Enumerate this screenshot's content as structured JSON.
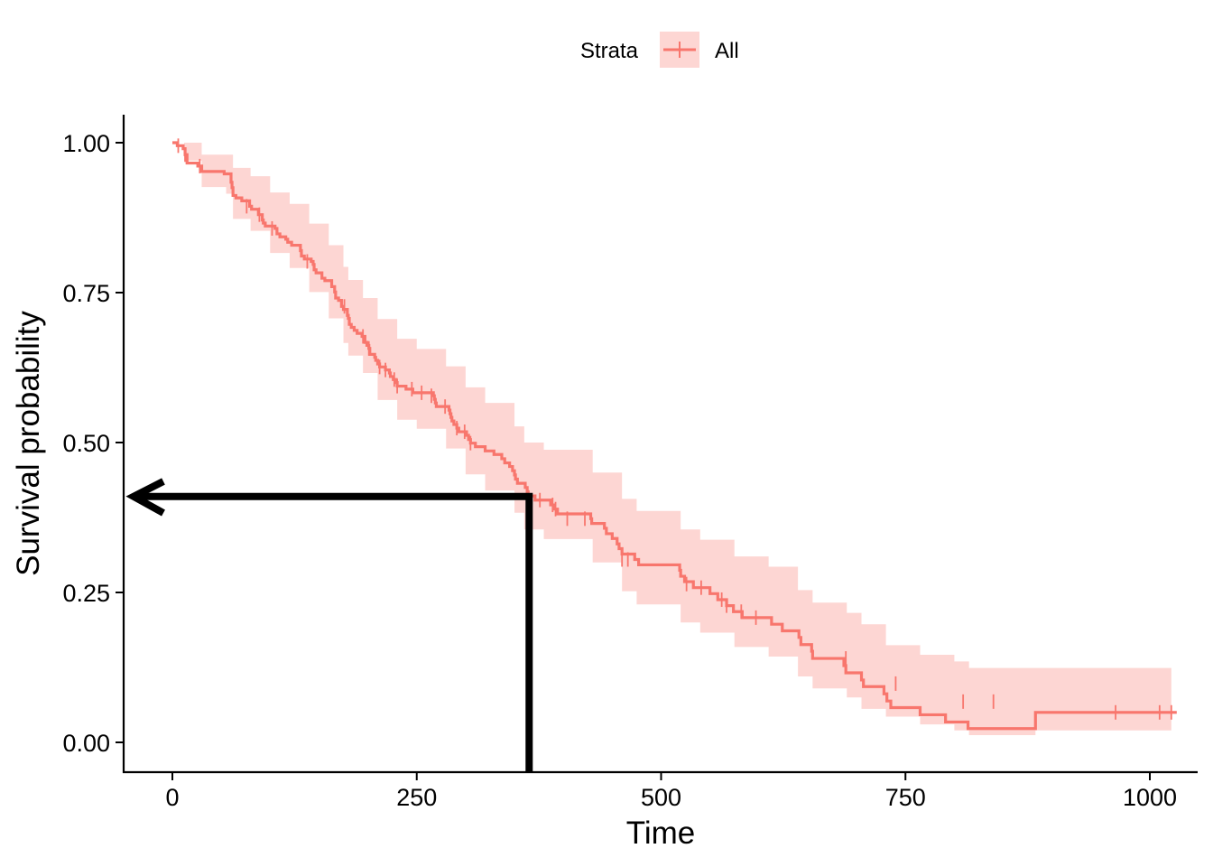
{
  "chart_data": {
    "type": "line",
    "title": "",
    "xlabel": "Time",
    "ylabel": "Survival probability",
    "xlim": [
      -100,
      1050
    ],
    "ylim": [
      -0.05,
      1.05
    ],
    "x_ticks": [
      0,
      250,
      500,
      750,
      1000
    ],
    "x_tick_labels": [
      "0",
      "250",
      "500",
      "750",
      "1000"
    ],
    "y_ticks": [
      0,
      0.25,
      0.5,
      0.75,
      1.0
    ],
    "y_tick_labels": [
      "0.00",
      "0.25",
      "0.50",
      "0.75",
      "1.00"
    ],
    "grid": false,
    "legend": {
      "title": "Strata",
      "position": "top",
      "entries": [
        "All"
      ]
    },
    "colors": {
      "line": "#F8766D",
      "band": "#F8766D",
      "annotation": "#000000"
    },
    "series": [
      {
        "name": "All",
        "step": [
          [
            0,
            1.0
          ],
          [
            5,
            0.995
          ],
          [
            11,
            0.99
          ],
          [
            13,
            0.98
          ],
          [
            15,
            0.966
          ],
          [
            26,
            0.961
          ],
          [
            30,
            0.952
          ],
          [
            53,
            0.948
          ],
          [
            60,
            0.934
          ],
          [
            61,
            0.925
          ],
          [
            62,
            0.912
          ],
          [
            65,
            0.908
          ],
          [
            71,
            0.903
          ],
          [
            79,
            0.894
          ],
          [
            81,
            0.889
          ],
          [
            88,
            0.88
          ],
          [
            92,
            0.871
          ],
          [
            93,
            0.866
          ],
          [
            95,
            0.861
          ],
          [
            105,
            0.857
          ],
          [
            107,
            0.848
          ],
          [
            110,
            0.843
          ],
          [
            116,
            0.839
          ],
          [
            118,
            0.834
          ],
          [
            122,
            0.829
          ],
          [
            131,
            0.82
          ],
          [
            132,
            0.811
          ],
          [
            135,
            0.806
          ],
          [
            142,
            0.802
          ],
          [
            144,
            0.797
          ],
          [
            145,
            0.788
          ],
          [
            147,
            0.783
          ],
          [
            153,
            0.774
          ],
          [
            156,
            0.77
          ],
          [
            163,
            0.76
          ],
          [
            166,
            0.751
          ],
          [
            167,
            0.741
          ],
          [
            170,
            0.737
          ],
          [
            173,
            0.727
          ],
          [
            175,
            0.722
          ],
          [
            179,
            0.712
          ],
          [
            180,
            0.707
          ],
          [
            181,
            0.697
          ],
          [
            183,
            0.692
          ],
          [
            186,
            0.687
          ],
          [
            189,
            0.682
          ],
          [
            194,
            0.677
          ],
          [
            197,
            0.667
          ],
          [
            199,
            0.662
          ],
          [
            201,
            0.657
          ],
          [
            202,
            0.647
          ],
          [
            207,
            0.642
          ],
          [
            208,
            0.637
          ],
          [
            210,
            0.631
          ],
          [
            212,
            0.626
          ],
          [
            218,
            0.621
          ],
          [
            222,
            0.616
          ],
          [
            223,
            0.61
          ],
          [
            226,
            0.605
          ],
          [
            229,
            0.6
          ],
          [
            230,
            0.594
          ],
          [
            239,
            0.589
          ],
          [
            246,
            0.583
          ],
          [
            267,
            0.578
          ],
          [
            268,
            0.572
          ],
          [
            269,
            0.566
          ],
          [
            270,
            0.56
          ],
          [
            283,
            0.554
          ],
          [
            284,
            0.548
          ],
          [
            285,
            0.542
          ],
          [
            286,
            0.536
          ],
          [
            288,
            0.53
          ],
          [
            291,
            0.524
          ],
          [
            293,
            0.518
          ],
          [
            301,
            0.512
          ],
          [
            303,
            0.505
          ],
          [
            305,
            0.499
          ],
          [
            310,
            0.493
          ],
          [
            320,
            0.486
          ],
          [
            329,
            0.48
          ],
          [
            337,
            0.473
          ],
          [
            340,
            0.466
          ],
          [
            345,
            0.46
          ],
          [
            348,
            0.453
          ],
          [
            350,
            0.446
          ],
          [
            351,
            0.439
          ],
          [
            353,
            0.432
          ],
          [
            361,
            0.425
          ],
          [
            363,
            0.418
          ],
          [
            364,
            0.411
          ],
          [
            371,
            0.404
          ],
          [
            387,
            0.396
          ],
          [
            390,
            0.389
          ],
          [
            394,
            0.381
          ],
          [
            428,
            0.373
          ],
          [
            429,
            0.365
          ],
          [
            442,
            0.357
          ],
          [
            444,
            0.348
          ],
          [
            450,
            0.34
          ],
          [
            455,
            0.331
          ],
          [
            457,
            0.323
          ],
          [
            460,
            0.314
          ],
          [
            473,
            0.305
          ],
          [
            477,
            0.296
          ],
          [
            519,
            0.287
          ],
          [
            520,
            0.277
          ],
          [
            524,
            0.268
          ],
          [
            533,
            0.258
          ],
          [
            550,
            0.248
          ],
          [
            558,
            0.238
          ],
          [
            567,
            0.228
          ],
          [
            574,
            0.218
          ],
          [
            583,
            0.208
          ],
          [
            613,
            0.197
          ],
          [
            624,
            0.186
          ],
          [
            641,
            0.175
          ],
          [
            643,
            0.163
          ],
          [
            654,
            0.152
          ],
          [
            655,
            0.14
          ],
          [
            687,
            0.128
          ],
          [
            689,
            0.116
          ],
          [
            705,
            0.104
          ],
          [
            707,
            0.093
          ],
          [
            728,
            0.081
          ],
          [
            731,
            0.069
          ],
          [
            735,
            0.058
          ],
          [
            765,
            0.046
          ],
          [
            791,
            0.034
          ],
          [
            814,
            0.023
          ],
          [
            883,
            0.05
          ],
          [
            1022,
            0.05
          ]
        ],
        "censored": [
          [
            6,
            0.995
          ],
          [
            13,
            0.98
          ],
          [
            28,
            0.961
          ],
          [
            76,
            0.894
          ],
          [
            89,
            0.88
          ],
          [
            102,
            0.857
          ],
          [
            138,
            0.802
          ],
          [
            176,
            0.727
          ],
          [
            195,
            0.677
          ],
          [
            201,
            0.657
          ],
          [
            212,
            0.626
          ],
          [
            218,
            0.621
          ],
          [
            227,
            0.605
          ],
          [
            230,
            0.594
          ],
          [
            245,
            0.589
          ],
          [
            255,
            0.583
          ],
          [
            265,
            0.578
          ],
          [
            279,
            0.56
          ],
          [
            291,
            0.524
          ],
          [
            299,
            0.518
          ],
          [
            305,
            0.499
          ],
          [
            363,
            0.411
          ],
          [
            376,
            0.404
          ],
          [
            389,
            0.396
          ],
          [
            392,
            0.389
          ],
          [
            404,
            0.373
          ],
          [
            422,
            0.373
          ],
          [
            460,
            0.305
          ],
          [
            466,
            0.305
          ],
          [
            526,
            0.264
          ],
          [
            541,
            0.258
          ],
          [
            562,
            0.238
          ],
          [
            567,
            0.228
          ],
          [
            582,
            0.218
          ],
          [
            597,
            0.208
          ],
          [
            689,
            0.14
          ],
          [
            740,
            0.098
          ],
          [
            809,
            0.068
          ],
          [
            840,
            0.068
          ],
          [
            965,
            0.05
          ],
          [
            1010,
            0.05
          ],
          [
            1022,
            0.05
          ]
        ],
        "ci_band": [
          [
            0,
            1.0,
            1.0
          ],
          [
            12,
            0.97,
            1.0
          ],
          [
            30,
            0.926,
            0.98
          ],
          [
            55,
            0.915,
            0.98
          ],
          [
            62,
            0.873,
            0.958
          ],
          [
            80,
            0.853,
            0.944
          ],
          [
            100,
            0.816,
            0.917
          ],
          [
            120,
            0.791,
            0.898
          ],
          [
            140,
            0.751,
            0.865
          ],
          [
            160,
            0.707,
            0.829
          ],
          [
            175,
            0.666,
            0.793
          ],
          [
            180,
            0.645,
            0.771
          ],
          [
            195,
            0.616,
            0.741
          ],
          [
            210,
            0.571,
            0.706
          ],
          [
            230,
            0.538,
            0.673
          ],
          [
            250,
            0.523,
            0.656
          ],
          [
            280,
            0.49,
            0.627
          ],
          [
            300,
            0.447,
            0.592
          ],
          [
            320,
            0.42,
            0.566
          ],
          [
            350,
            0.383,
            0.527
          ],
          [
            360,
            0.355,
            0.5
          ],
          [
            380,
            0.339,
            0.488
          ],
          [
            430,
            0.3,
            0.45
          ],
          [
            460,
            0.252,
            0.406
          ],
          [
            475,
            0.23,
            0.386
          ],
          [
            520,
            0.2,
            0.355
          ],
          [
            540,
            0.183,
            0.338
          ],
          [
            575,
            0.159,
            0.31
          ],
          [
            610,
            0.143,
            0.293
          ],
          [
            640,
            0.11,
            0.254
          ],
          [
            655,
            0.09,
            0.233
          ],
          [
            690,
            0.075,
            0.216
          ],
          [
            705,
            0.056,
            0.197
          ],
          [
            730,
            0.043,
            0.162
          ],
          [
            765,
            0.03,
            0.146
          ],
          [
            800,
            0.02,
            0.135
          ],
          [
            815,
            0.012,
            0.124
          ],
          [
            883,
            0.02,
            0.124
          ],
          [
            1022,
            0.02,
            0.124
          ]
        ]
      }
    ],
    "annotation": {
      "type": "arrow",
      "x_time": 365,
      "y_prob": 0.41,
      "description": "vertical line from x-axis at time 365 up to the curve, then horizontal arrow pointing left to the y-axis"
    }
  }
}
